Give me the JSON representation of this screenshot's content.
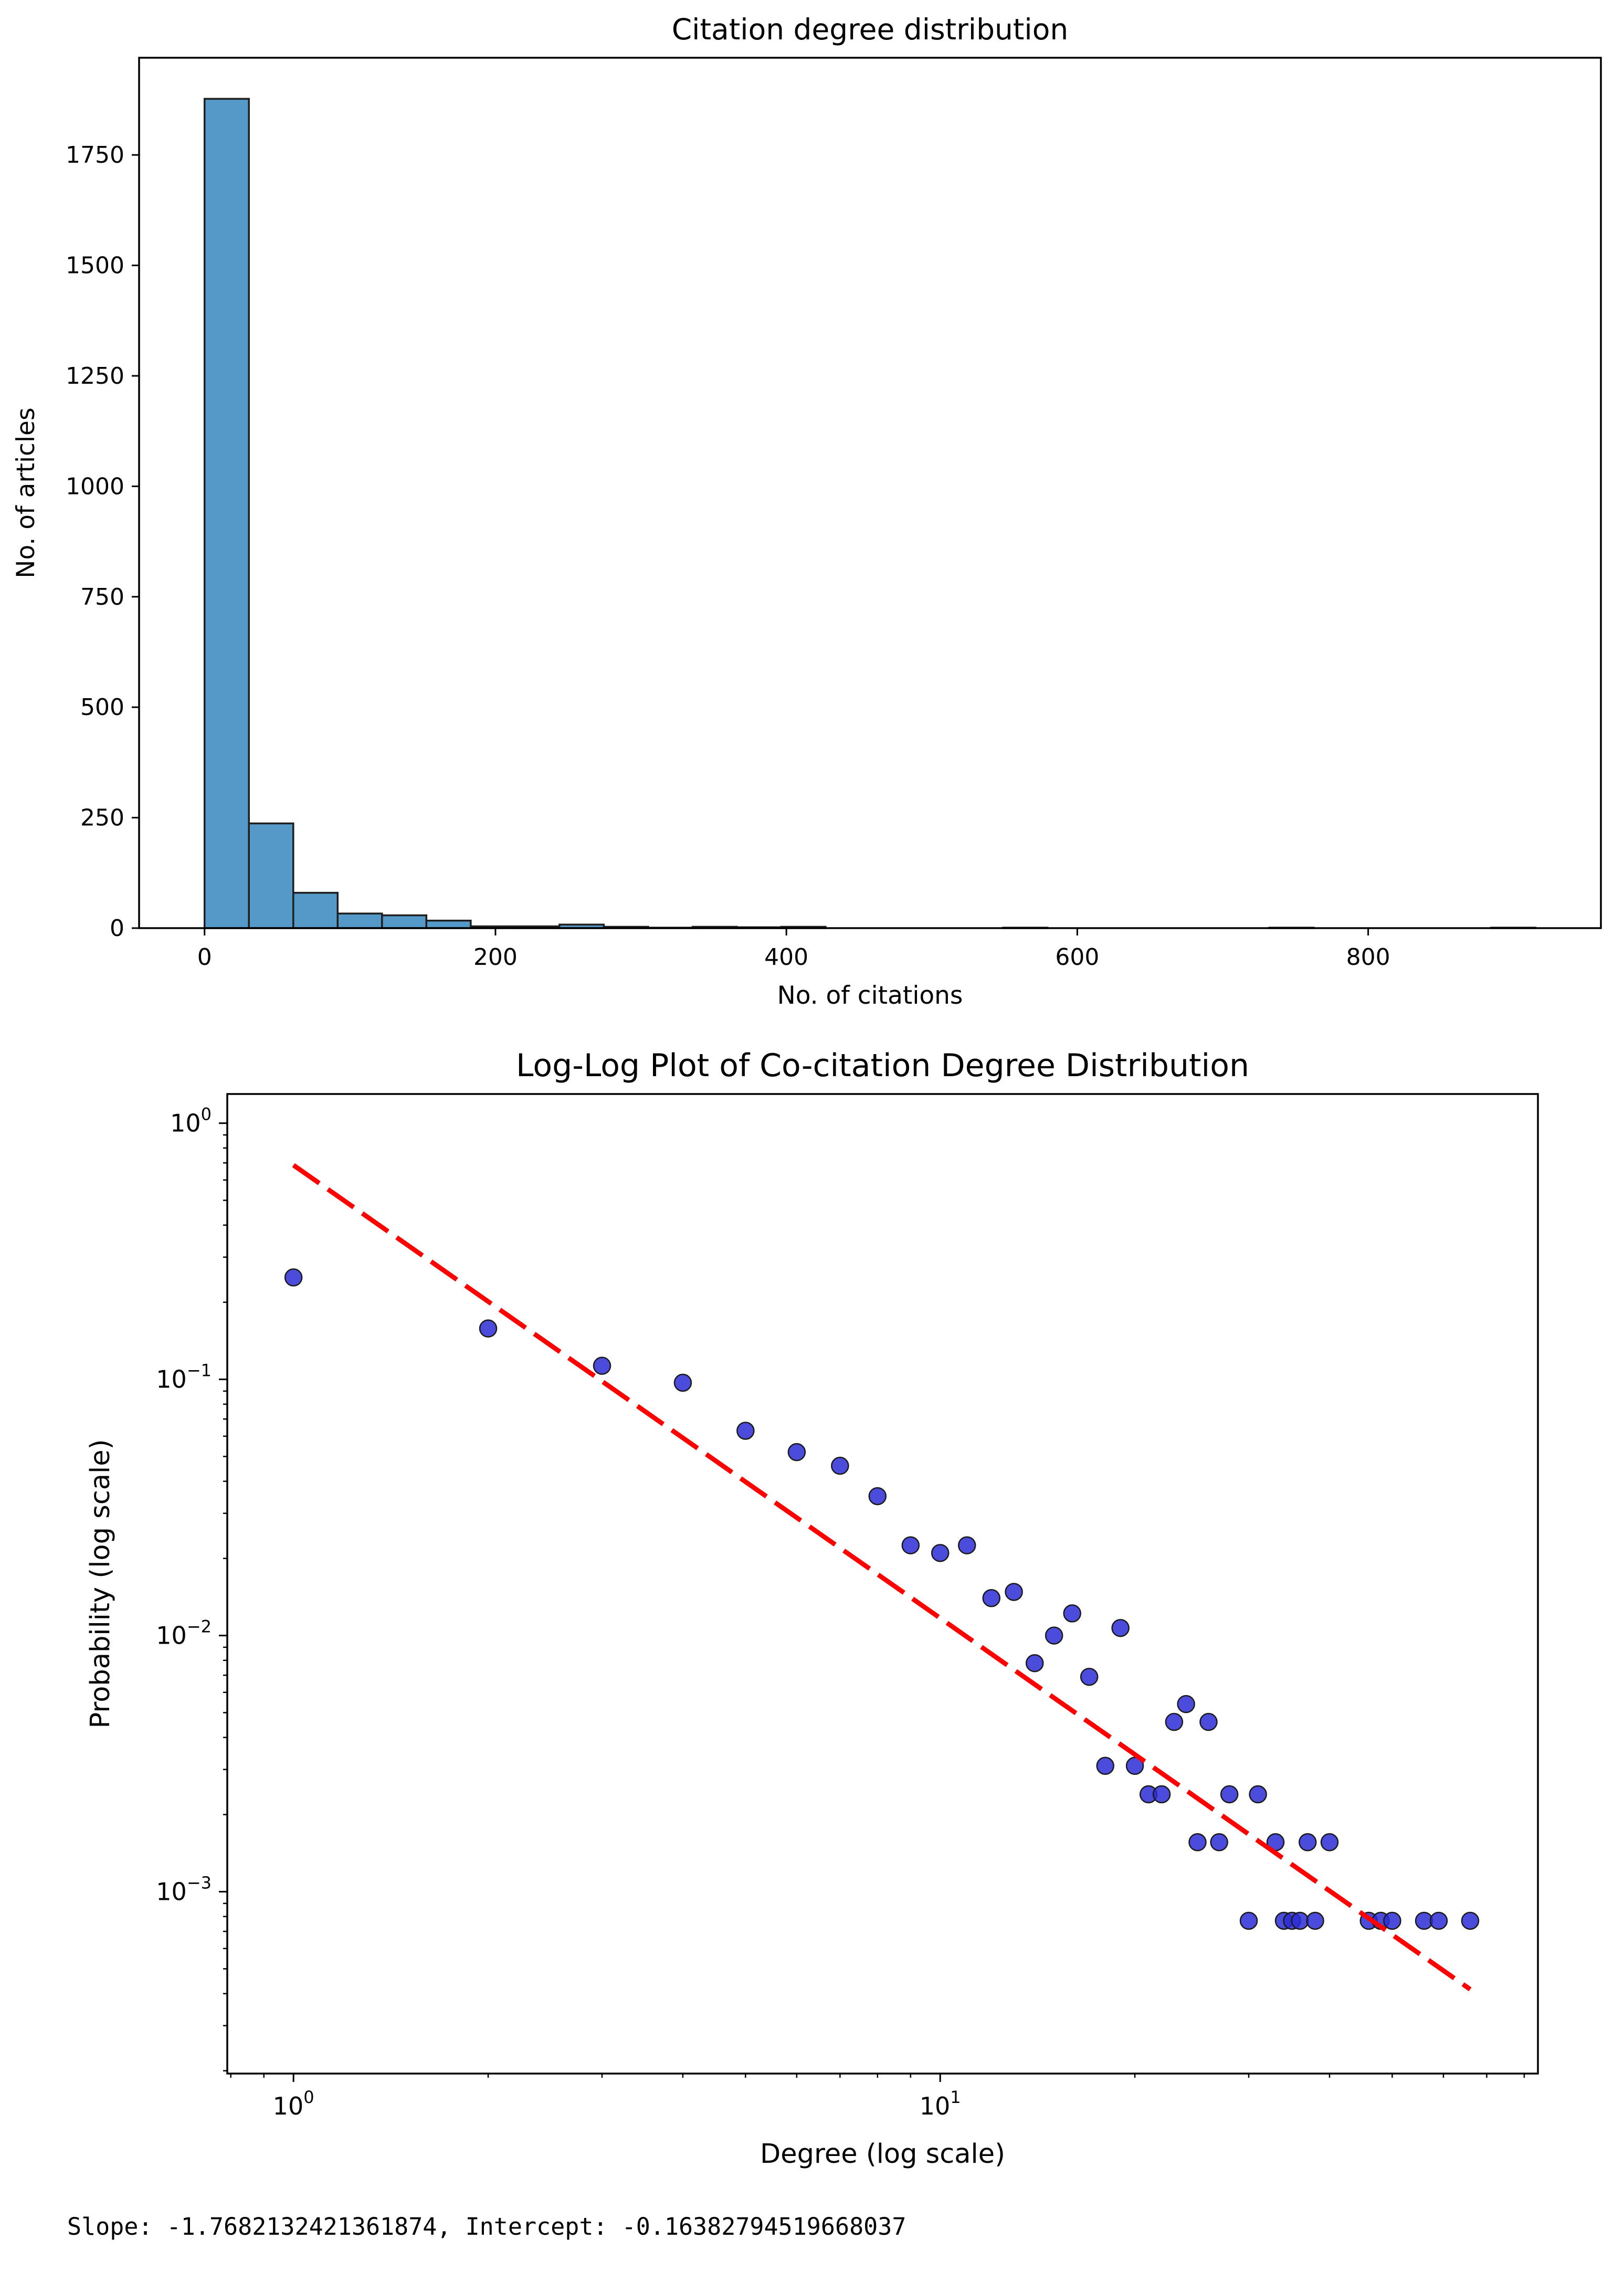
{
  "chart_data": [
    {
      "type": "bar",
      "title": "Citation degree distribution",
      "xlabel": "No. of citations",
      "ylabel": "No. of articles",
      "xlim": [
        -45,
        960
      ],
      "ylim": [
        0,
        1970
      ],
      "xticks": [
        0,
        200,
        400,
        600,
        800
      ],
      "yticks": [
        0,
        250,
        500,
        750,
        1000,
        1250,
        1500,
        1750
      ],
      "bin_width": 30.5,
      "bin_start": 0,
      "values": [
        1877,
        237,
        80,
        33,
        29,
        17,
        4,
        4,
        8,
        3,
        1,
        3,
        2,
        3,
        0,
        0,
        0,
        0,
        1,
        0,
        0,
        0,
        0,
        0,
        1,
        0,
        0,
        0,
        0,
        1
      ],
      "bar_color": "#5499c7",
      "edge_color": "#1f1f1f"
    },
    {
      "type": "scatter",
      "title": "Log-Log Plot of Co-citation Degree Distribution",
      "xlabel": "Degree (log scale)",
      "ylabel": "Probability (log scale)",
      "xscale": "log",
      "yscale": "log",
      "xlim": [
        0.79,
        84
      ],
      "ylim": [
        0.000195,
        1.3
      ],
      "xticks": [
        {
          "value": 1,
          "label": "10",
          "exp": "0"
        },
        {
          "value": 10,
          "label": "10",
          "exp": "1"
        }
      ],
      "yticks": [
        {
          "value": 1,
          "label": "10",
          "exp": "0"
        },
        {
          "value": 0.1,
          "label": "10",
          "exp": "−1"
        },
        {
          "value": 0.01,
          "label": "10",
          "exp": "−2"
        },
        {
          "value": 0.001,
          "label": "10",
          "exp": "−3"
        }
      ],
      "points": [
        [
          1,
          0.25
        ],
        [
          2,
          0.158
        ],
        [
          3,
          0.113
        ],
        [
          4,
          0.097
        ],
        [
          5,
          0.063
        ],
        [
          6,
          0.052
        ],
        [
          7,
          0.046
        ],
        [
          8,
          0.035
        ],
        [
          9,
          0.0225
        ],
        [
          10,
          0.021
        ],
        [
          11,
          0.0225
        ],
        [
          12,
          0.014
        ],
        [
          13,
          0.0148
        ],
        [
          14,
          0.0078
        ],
        [
          15,
          0.01
        ],
        [
          16,
          0.0122
        ],
        [
          17,
          0.0069
        ],
        [
          18,
          0.0031
        ],
        [
          19,
          0.0107
        ],
        [
          20,
          0.0031
        ],
        [
          21,
          0.0024
        ],
        [
          22,
          0.0024
        ],
        [
          23,
          0.0046
        ],
        [
          24,
          0.0054
        ],
        [
          25,
          0.00156
        ],
        [
          26,
          0.0046
        ],
        [
          27,
          0.00156
        ],
        [
          28,
          0.0024
        ],
        [
          30,
          0.00077
        ],
        [
          31,
          0.0024
        ],
        [
          33,
          0.00156
        ],
        [
          34,
          0.00077
        ],
        [
          35,
          0.00077
        ],
        [
          36,
          0.00077
        ],
        [
          37,
          0.00156
        ],
        [
          38,
          0.00077
        ],
        [
          40,
          0.00156
        ],
        [
          46,
          0.00077
        ],
        [
          48,
          0.00077
        ],
        [
          50,
          0.00077
        ],
        [
          56,
          0.00077
        ],
        [
          59,
          0.00077
        ],
        [
          66,
          0.00077
        ]
      ],
      "point_color": "#2b2bd6",
      "fit_line": {
        "slope": -1.7682132421361874,
        "intercept": -0.16382794519668037,
        "x_range": [
          1,
          66
        ],
        "color": "#ff0000",
        "style": "dashed"
      }
    }
  ],
  "output": {
    "text": "Slope: -1.7682132421361874, Intercept: -0.16382794519668037"
  }
}
